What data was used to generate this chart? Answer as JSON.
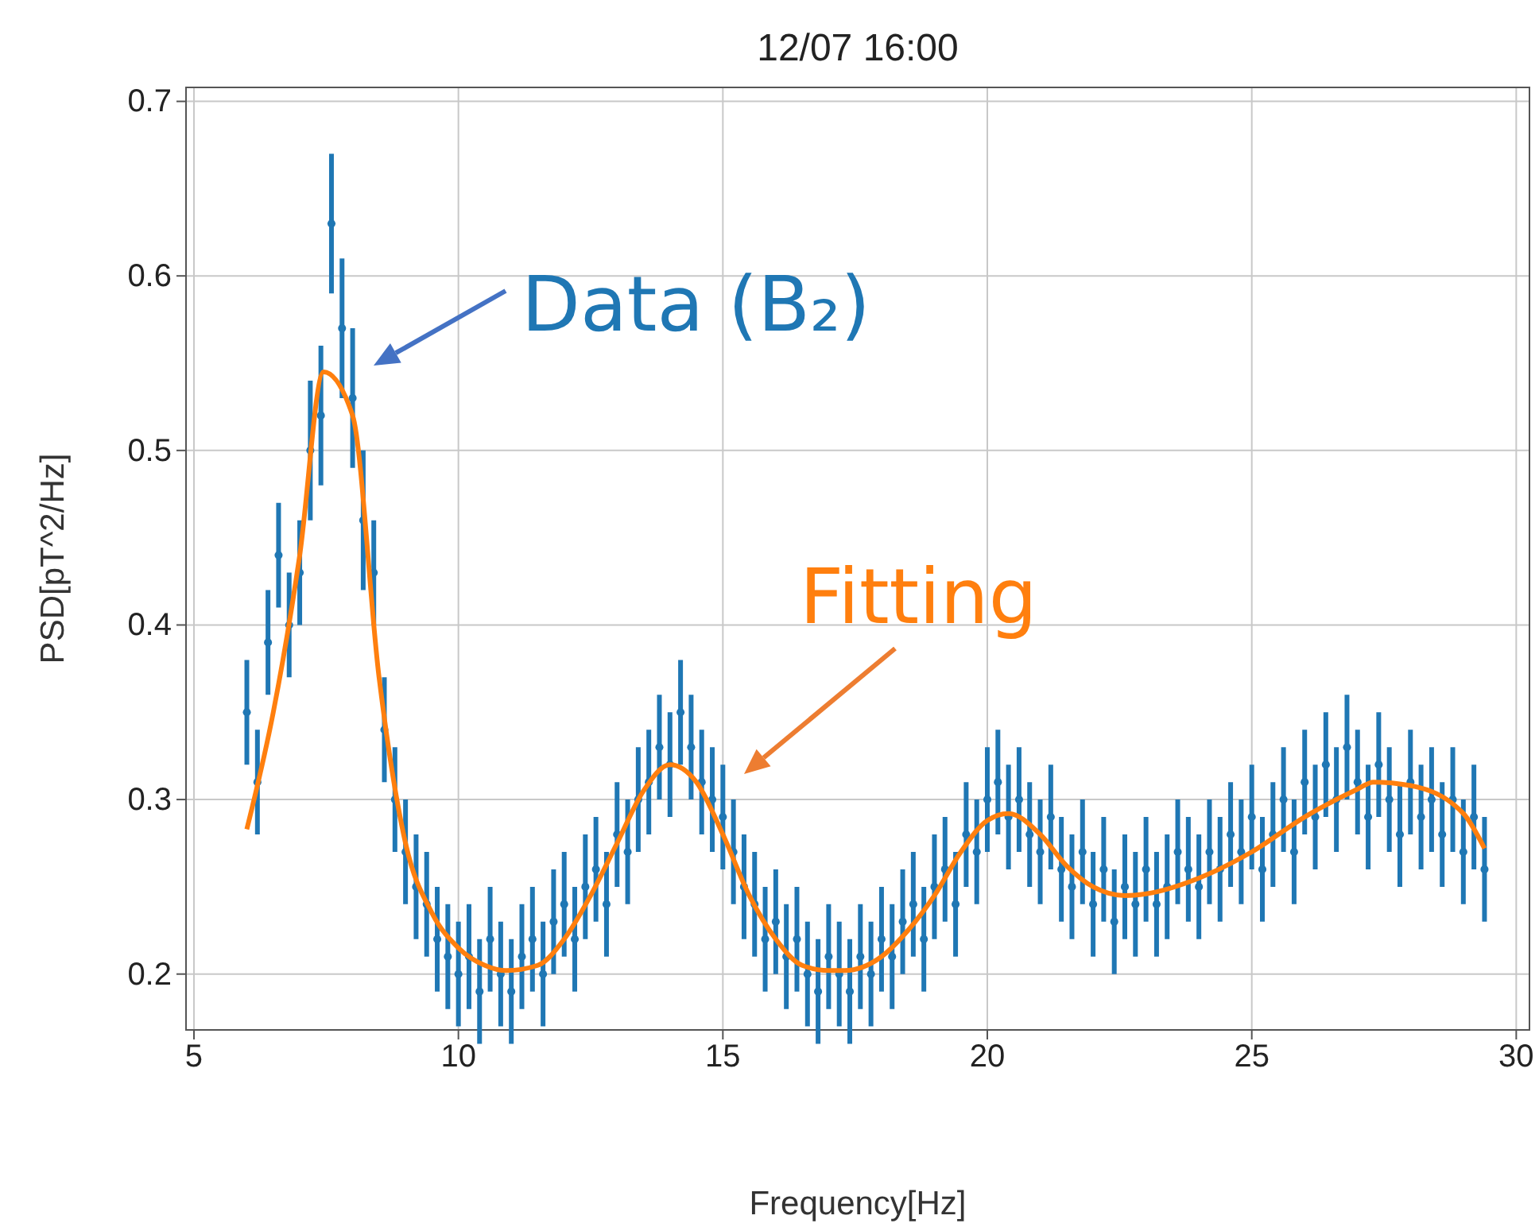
{
  "chart_data": {
    "type": "scatter",
    "title": "12/07 16:00",
    "xlabel": "Frequency[Hz]",
    "ylabel": "PSD[pT^2/Hz]",
    "xlim": [
      4.85,
      30.25
    ],
    "ylim": [
      0.168,
      0.708
    ],
    "xticks": [
      5,
      10,
      15,
      20,
      25,
      30
    ],
    "yticks": [
      0.2,
      0.3,
      0.4,
      0.5,
      0.6,
      0.7
    ],
    "grid": true,
    "series": [
      {
        "marker": "circle",
        "color": "#1f77b4",
        "x": [
          6.0,
          6.2,
          6.4,
          6.6,
          6.8,
          7.0,
          7.2,
          7.4,
          7.6,
          7.8,
          8.0,
          8.2,
          8.4,
          8.6,
          8.8,
          9.0,
          9.2,
          9.4,
          9.6,
          9.8,
          10.0,
          10.2,
          10.4,
          10.6,
          10.8,
          11.0,
          11.2,
          11.4,
          11.6,
          11.8,
          12.0,
          12.2,
          12.4,
          12.6,
          12.8,
          13.0,
          13.2,
          13.4,
          13.6,
          13.8,
          14.0,
          14.2,
          14.4,
          14.6,
          14.8,
          15.0,
          15.2,
          15.4,
          15.6,
          15.8,
          16.0,
          16.2,
          16.4,
          16.6,
          16.8,
          17.0,
          17.2,
          17.4,
          17.6,
          17.8,
          18.0,
          18.2,
          18.4,
          18.6,
          18.8,
          19.0,
          19.2,
          19.4,
          19.6,
          19.8,
          20.0,
          20.2,
          20.4,
          20.6,
          20.8,
          21.0,
          21.2,
          21.4,
          21.6,
          21.8,
          22.0,
          22.2,
          22.4,
          22.6,
          22.8,
          23.0,
          23.2,
          23.4,
          23.6,
          23.8,
          24.0,
          24.2,
          24.4,
          24.6,
          24.8,
          25.0,
          25.2,
          25.4,
          25.6,
          25.8,
          26.0,
          26.2,
          26.4,
          26.6,
          26.8,
          27.0,
          27.2,
          27.4,
          27.6,
          27.8,
          28.0,
          28.2,
          28.4,
          28.6,
          28.8,
          29.0,
          29.2,
          29.4
        ],
        "values": [
          0.35,
          0.31,
          0.39,
          0.44,
          0.4,
          0.43,
          0.5,
          0.52,
          0.63,
          0.57,
          0.53,
          0.46,
          0.43,
          0.34,
          0.3,
          0.27,
          0.25,
          0.24,
          0.22,
          0.21,
          0.2,
          0.21,
          0.19,
          0.22,
          0.2,
          0.19,
          0.21,
          0.22,
          0.2,
          0.23,
          0.24,
          0.22,
          0.25,
          0.26,
          0.24,
          0.28,
          0.27,
          0.3,
          0.31,
          0.33,
          0.32,
          0.35,
          0.33,
          0.31,
          0.3,
          0.29,
          0.27,
          0.25,
          0.24,
          0.22,
          0.23,
          0.21,
          0.22,
          0.2,
          0.19,
          0.21,
          0.2,
          0.19,
          0.21,
          0.2,
          0.22,
          0.21,
          0.23,
          0.24,
          0.22,
          0.25,
          0.26,
          0.24,
          0.28,
          0.27,
          0.3,
          0.31,
          0.29,
          0.3,
          0.28,
          0.27,
          0.29,
          0.26,
          0.25,
          0.27,
          0.24,
          0.26,
          0.23,
          0.25,
          0.24,
          0.26,
          0.24,
          0.25,
          0.27,
          0.26,
          0.25,
          0.27,
          0.26,
          0.28,
          0.27,
          0.29,
          0.26,
          0.28,
          0.3,
          0.27,
          0.31,
          0.29,
          0.32,
          0.3,
          0.33,
          0.31,
          0.29,
          0.32,
          0.3,
          0.28,
          0.31,
          0.29,
          0.3,
          0.28,
          0.3,
          0.27,
          0.29,
          0.26
        ],
        "errors": [
          0.03,
          0.03,
          0.03,
          0.03,
          0.03,
          0.03,
          0.04,
          0.04,
          0.04,
          0.04,
          0.04,
          0.04,
          0.03,
          0.03,
          0.03,
          0.03,
          0.03,
          0.03,
          0.03,
          0.03,
          0.03,
          0.03,
          0.03,
          0.03,
          0.03,
          0.03,
          0.03,
          0.03,
          0.03,
          0.03,
          0.03,
          0.03,
          0.03,
          0.03,
          0.03,
          0.03,
          0.03,
          0.03,
          0.03,
          0.03,
          0.03,
          0.03,
          0.03,
          0.03,
          0.03,
          0.03,
          0.03,
          0.03,
          0.03,
          0.03,
          0.03,
          0.03,
          0.03,
          0.03,
          0.03,
          0.03,
          0.03,
          0.03,
          0.03,
          0.03,
          0.03,
          0.03,
          0.03,
          0.03,
          0.03,
          0.03,
          0.03,
          0.03,
          0.03,
          0.03,
          0.03,
          0.03,
          0.03,
          0.03,
          0.03,
          0.03,
          0.03,
          0.03,
          0.03,
          0.03,
          0.03,
          0.03,
          0.03,
          0.03,
          0.03,
          0.03,
          0.03,
          0.03,
          0.03,
          0.03,
          0.03,
          0.03,
          0.03,
          0.03,
          0.03,
          0.03,
          0.03,
          0.03,
          0.03,
          0.03,
          0.03,
          0.03,
          0.03,
          0.03,
          0.03,
          0.03,
          0.03,
          0.03,
          0.03,
          0.03,
          0.03,
          0.03,
          0.03,
          0.03,
          0.03,
          0.03,
          0.03,
          0.03
        ]
      },
      {
        "type": "line",
        "color": "#ff7f0e",
        "x": [
          6,
          6.5,
          7,
          7.45,
          8,
          8.5,
          9,
          9.5,
          10,
          10.5,
          10.9,
          11.5,
          12,
          12.5,
          13,
          13.5,
          14,
          14.5,
          15,
          15.5,
          16,
          16.5,
          17,
          17.3,
          18,
          18.5,
          19,
          19.5,
          20,
          20.4,
          21,
          21.5,
          22,
          22.6,
          23,
          24,
          25,
          26,
          27,
          27.3,
          28,
          29,
          29.4
        ],
        "values": [
          0.283,
          0.35,
          0.44,
          0.545,
          0.52,
          0.37,
          0.275,
          0.235,
          0.215,
          0.205,
          0.202,
          0.205,
          0.22,
          0.245,
          0.275,
          0.305,
          0.32,
          0.31,
          0.28,
          0.245,
          0.22,
          0.205,
          0.202,
          0.202,
          0.21,
          0.225,
          0.245,
          0.27,
          0.288,
          0.292,
          0.28,
          0.262,
          0.25,
          0.245,
          0.246,
          0.255,
          0.27,
          0.29,
          0.306,
          0.31,
          0.308,
          0.292,
          0.272
        ]
      }
    ],
    "annotations": [
      "Data (B₂)",
      "Fitting"
    ]
  }
}
